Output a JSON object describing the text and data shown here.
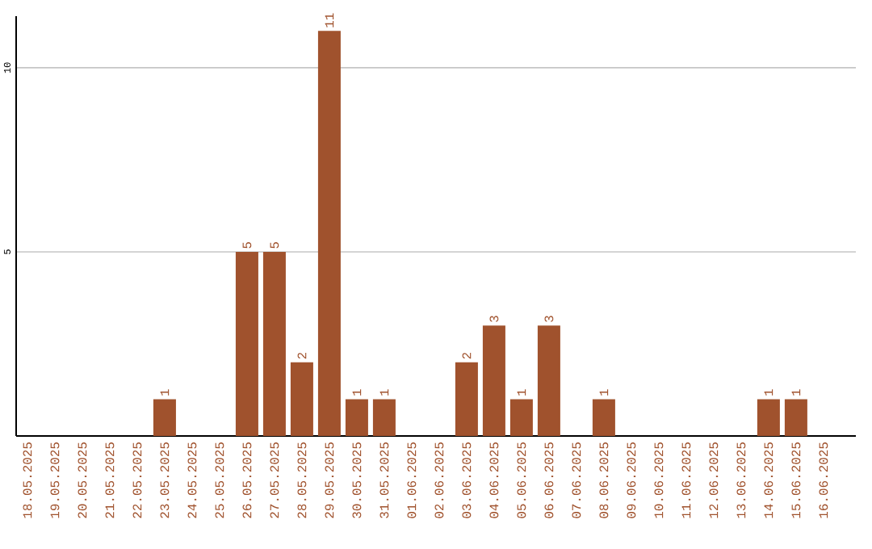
{
  "chart_data": {
    "type": "bar",
    "categories": [
      "18.05.2025",
      "19.05.2025",
      "20.05.2025",
      "21.05.2025",
      "22.05.2025",
      "23.05.2025",
      "24.05.2025",
      "25.05.2025",
      "26.05.2025",
      "27.05.2025",
      "28.05.2025",
      "29.05.2025",
      "30.05.2025",
      "31.05.2025",
      "01.06.2025",
      "02.06.2025",
      "03.06.2025",
      "04.06.2025",
      "05.06.2025",
      "06.06.2025",
      "07.06.2025",
      "08.06.2025",
      "09.06.2025",
      "10.06.2025",
      "11.06.2025",
      "12.06.2025",
      "13.06.2025",
      "14.06.2025",
      "15.06.2025",
      "16.06.2025"
    ],
    "values": [
      0,
      0,
      0,
      0,
      0,
      1,
      0,
      0,
      5,
      5,
      2,
      11,
      1,
      1,
      0,
      0,
      2,
      3,
      1,
      3,
      0,
      1,
      0,
      0,
      0,
      0,
      0,
      1,
      1,
      0
    ],
    "value_labels": [
      null,
      null,
      null,
      null,
      null,
      "1",
      null,
      null,
      "5",
      "5",
      "2",
      "11",
      "1",
      "1",
      null,
      null,
      "2",
      "3",
      "1",
      "3",
      null,
      "1",
      null,
      null,
      null,
      null,
      null,
      "1",
      "1",
      null
    ],
    "color": "#a0522d",
    "ylim": [
      0,
      11.4
    ],
    "yticks": [
      5,
      10
    ],
    "grid": "y"
  }
}
